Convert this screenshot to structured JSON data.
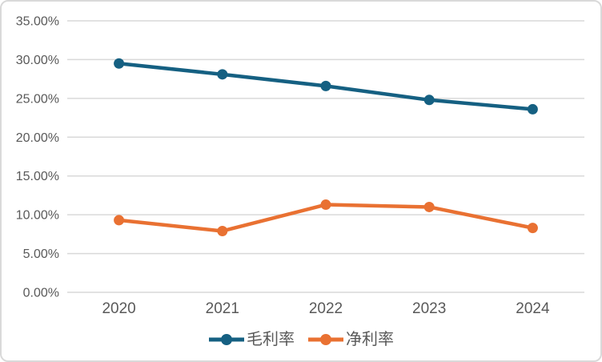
{
  "chart": {
    "background": "#FFFFFF",
    "border_color": "#D9D9D9"
  },
  "chart_data": {
    "type": "line",
    "title": "",
    "xlabel": "",
    "ylabel": "",
    "categories": [
      "2020",
      "2021",
      "2022",
      "2023",
      "2024"
    ],
    "series": [
      {
        "name": "毛利率",
        "color": "#156082",
        "values": [
          29.5,
          28.1,
          26.6,
          24.8,
          23.6
        ]
      },
      {
        "name": "净利率",
        "color": "#E97132",
        "values": [
          9.3,
          7.9,
          11.3,
          11.0,
          8.3
        ]
      }
    ],
    "ylim": [
      0,
      35
    ],
    "ytick_step": 5,
    "y_tick_labels": [
      "0.00%",
      "5.00%",
      "10.00%",
      "15.00%",
      "20.00%",
      "25.00%",
      "30.00%",
      "35.00%"
    ],
    "grid": true,
    "legend_position": "bottom",
    "grid_color": "#D9D9D9",
    "axis_text_color": "#595959"
  }
}
